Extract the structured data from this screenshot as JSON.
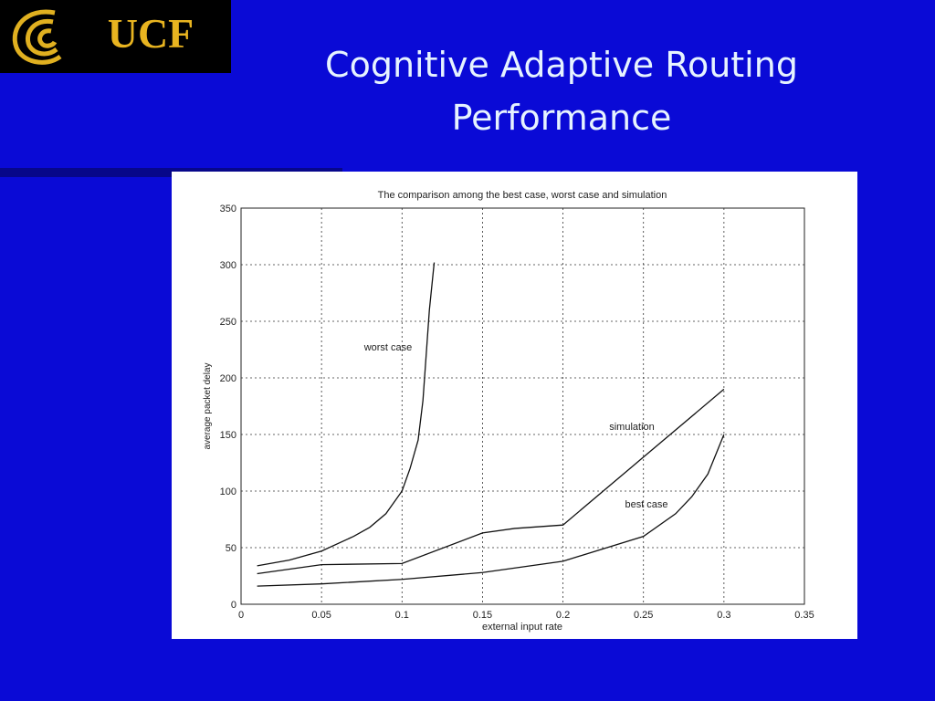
{
  "slide": {
    "logo": "UCF",
    "title_lines": [
      "Cognitive Adaptive Routing",
      "Performance"
    ]
  },
  "chart_data": {
    "type": "line",
    "title": "The comparison among the best case, worst case and simulation",
    "x_label": "external input rate",
    "y_label": "average packet delay",
    "xlim": [
      0,
      0.35
    ],
    "ylim": [
      0,
      350
    ],
    "xticks": [
      0,
      0.05,
      0.1,
      0.15,
      0.2,
      0.25,
      0.3,
      0.35
    ],
    "yticks": [
      0,
      50,
      100,
      150,
      200,
      250,
      300,
      350
    ],
    "grid": true,
    "series": [
      {
        "name": "worst case",
        "color": "#111111",
        "x": [
          0.01,
          0.03,
          0.05,
          0.07,
          0.08,
          0.09,
          0.1,
          0.105,
          0.11,
          0.113,
          0.115,
          0.117,
          0.12
        ],
        "values": [
          34,
          39,
          47,
          60,
          68,
          80,
          100,
          120,
          145,
          180,
          220,
          260,
          302
        ]
      },
      {
        "name": "simulation",
        "color": "#111111",
        "x": [
          0.01,
          0.05,
          0.1,
          0.15,
          0.17,
          0.2,
          0.25,
          0.3
        ],
        "values": [
          27,
          35,
          36,
          63,
          67,
          70,
          130,
          190
        ]
      },
      {
        "name": "best case",
        "color": "#111111",
        "x": [
          0.01,
          0.05,
          0.1,
          0.15,
          0.2,
          0.25,
          0.27,
          0.28,
          0.29,
          0.3
        ],
        "values": [
          16,
          18,
          22,
          28,
          38,
          60,
          80,
          95,
          115,
          150
        ]
      }
    ]
  }
}
